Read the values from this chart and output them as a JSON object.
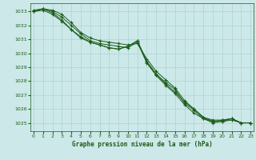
{
  "title": "Graphe pression niveau de la mer (hPa)",
  "background_color": "#cce8e8",
  "grid_color": "#aad4d4",
  "line_color": "#1a5c1a",
  "ylim": [
    1024.4,
    1033.6
  ],
  "xlim": [
    -0.3,
    23.3
  ],
  "yticks": [
    1025,
    1026,
    1027,
    1028,
    1029,
    1030,
    1031,
    1032,
    1033
  ],
  "xticks": [
    0,
    1,
    2,
    3,
    4,
    5,
    6,
    7,
    8,
    9,
    10,
    11,
    12,
    13,
    14,
    15,
    16,
    17,
    18,
    19,
    20,
    21,
    22,
    23
  ],
  "series": [
    [
      1033.0,
      1033.2,
      1033.1,
      1032.8,
      1032.2,
      1031.5,
      1031.1,
      1030.9,
      1030.8,
      1030.7,
      1030.6,
      1030.7,
      1029.6,
      1028.7,
      1028.1,
      1027.5,
      1026.6,
      1026.0,
      1025.4,
      1025.2,
      1025.2,
      1025.3,
      1025.0,
      1025.0
    ],
    [
      1033.0,
      1033.2,
      1033.0,
      1032.6,
      1032.0,
      1031.4,
      1030.9,
      1030.7,
      1030.6,
      1030.5,
      1030.4,
      1030.8,
      1029.3,
      1028.4,
      1027.7,
      1027.1,
      1026.3,
      1025.7,
      1025.3,
      1025.1,
      1025.1,
      1025.2,
      1025.0,
      1025.0
    ],
    [
      1033.1,
      1033.2,
      1032.9,
      1032.4,
      1031.7,
      1031.1,
      1030.8,
      1030.6,
      1030.4,
      1030.3,
      1030.5,
      1030.9,
      1029.4,
      1028.5,
      1027.9,
      1027.4,
      1026.4,
      1025.9,
      1025.3,
      1025.0,
      1025.1,
      1025.3,
      1025.0,
      1025.0
    ],
    [
      1033.0,
      1033.1,
      1032.8,
      1032.3,
      1031.7,
      1031.2,
      1030.8,
      1030.6,
      1030.4,
      1030.3,
      1030.5,
      1030.9,
      1029.4,
      1028.5,
      1027.8,
      1027.2,
      1026.5,
      1026.0,
      1025.4,
      1025.1,
      1025.2,
      1025.3,
      1025.0,
      1025.0
    ]
  ],
  "figsize": [
    3.2,
    2.0
  ],
  "dpi": 100
}
